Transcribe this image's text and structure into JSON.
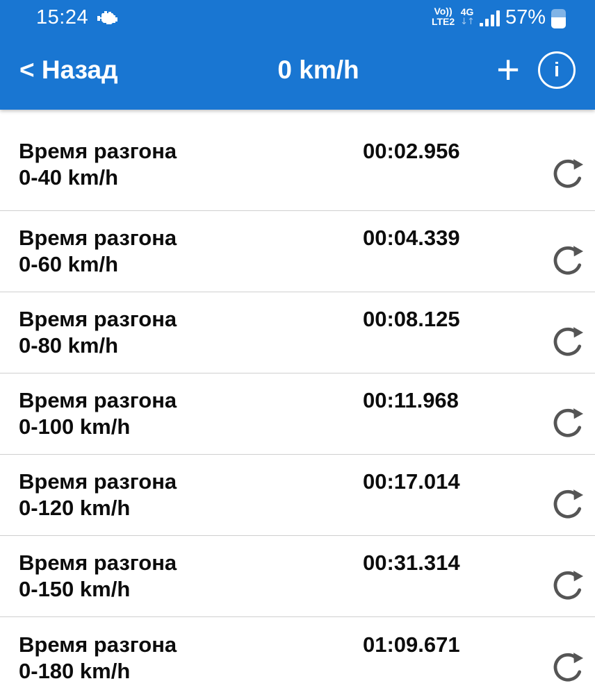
{
  "colors": {
    "header_bg": "#1976d2",
    "divider": "#cfcfcf",
    "row_text": "#0c0c0c",
    "refresh_icon": "#555555",
    "status_text": "#ffffff"
  },
  "statusbar": {
    "time": "15:24",
    "volte_line1": "Vo))",
    "volte_line2": "LTE2",
    "net_type": "4G",
    "net_arrows": "↓↑",
    "battery_percent": "57%",
    "battery_level": 57
  },
  "header": {
    "back": "< Назад",
    "title": "0 km/h",
    "plus": "+",
    "info": "i"
  },
  "list": {
    "rows": [
      {
        "line1": "Время разгона",
        "line2": "0-40 km/h",
        "value": "00:02.956"
      },
      {
        "line1": "Время разгона",
        "line2": "0-60 km/h",
        "value": "00:04.339"
      },
      {
        "line1": "Время разгона",
        "line2": "0-80 km/h",
        "value": "00:08.125"
      },
      {
        "line1": "Время разгона",
        "line2": "0-100 km/h",
        "value": "00:11.968"
      },
      {
        "line1": "Время разгона",
        "line2": "0-120 km/h",
        "value": "00:17.014"
      },
      {
        "line1": "Время разгона",
        "line2": "0-150 km/h",
        "value": "00:31.314"
      },
      {
        "line1": "Время разгона",
        "line2": "0-180 km/h",
        "value": "01:09.671"
      }
    ]
  }
}
